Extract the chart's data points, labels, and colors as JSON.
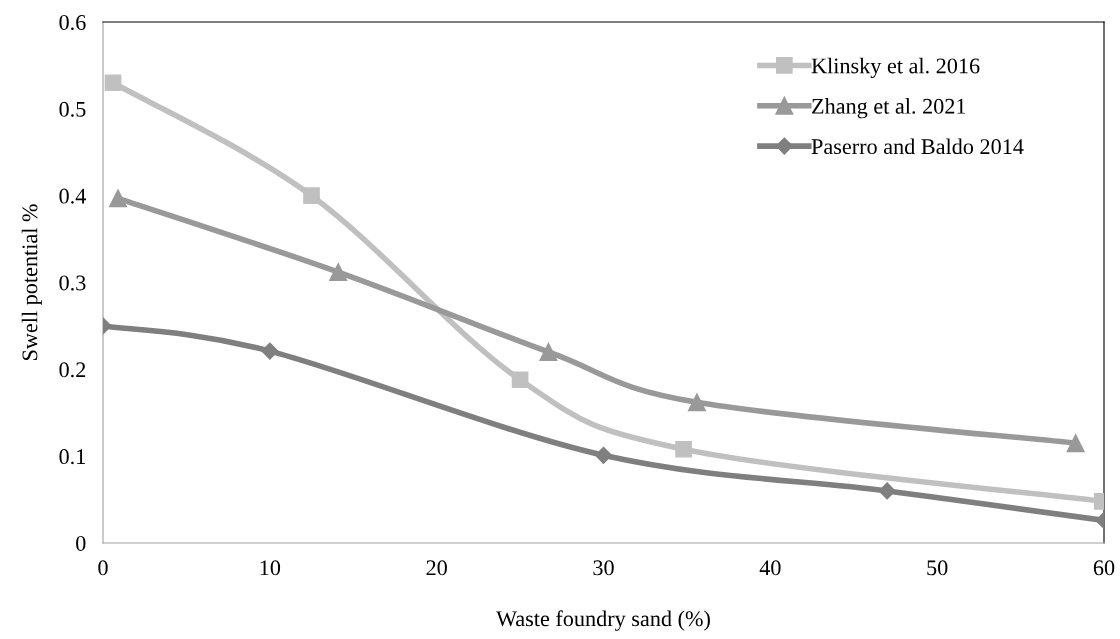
{
  "chart_data": {
    "type": "line",
    "xlabel": "Waste foundry sand (%)",
    "ylabel": "Swell potential %",
    "xlim": [
      0,
      60
    ],
    "xticks": [
      0,
      10,
      20,
      30,
      40,
      50,
      60
    ],
    "ylim": [
      0,
      0.6
    ],
    "yticks": [
      0,
      0.1,
      0.2,
      0.3,
      0.4,
      0.5,
      0.6
    ],
    "grid": false,
    "legend": "top right",
    "line_style": "solid",
    "series": [
      {
        "name": "Klinsky et al. 2016",
        "color": "#c0c0c0",
        "marker": "square",
        "x": [
          0.6,
          12.5,
          25.0,
          34.8,
          59.9
        ],
        "values": [
          0.53,
          0.4,
          0.188,
          0.108,
          0.048
        ]
      },
      {
        "name": "Zhang et al. 2021",
        "color": "#999999",
        "marker": "triangle",
        "x": [
          0.9,
          14.1,
          26.7,
          35.6,
          58.3
        ],
        "values": [
          0.397,
          0.312,
          0.22,
          0.162,
          0.115
        ]
      },
      {
        "name": "Paserro and Baldo 2014",
        "color": "#7f7f7f",
        "marker": "diamond",
        "x": [
          0,
          10,
          30,
          47.0,
          60
        ],
        "values": [
          0.25,
          0.221,
          0.101,
          0.06,
          0.026
        ]
      }
    ]
  }
}
